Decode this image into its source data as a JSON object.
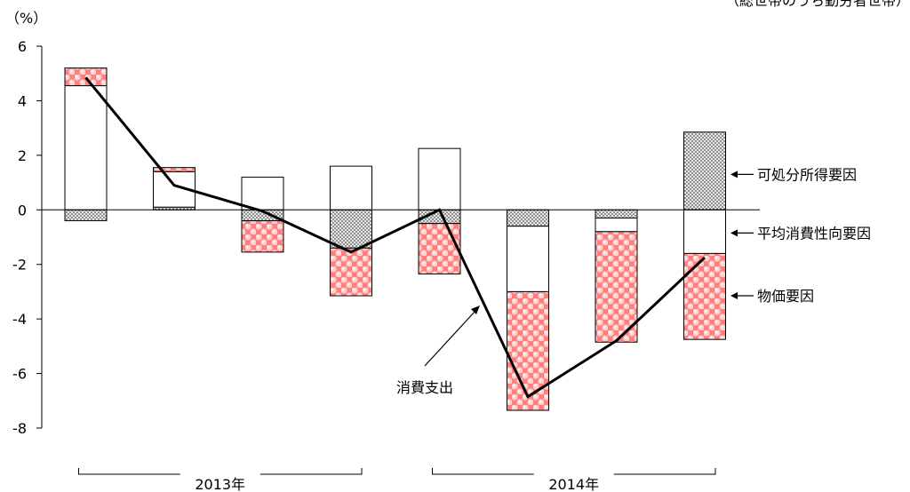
{
  "header_text": "（総世帯のうち勤労者世帯）",
  "chart_data": {
    "type": "bar",
    "stacked": true,
    "y_unit_label": "（%）",
    "ylim": [
      -8,
      6
    ],
    "y_ticks": [
      6,
      4,
      2,
      0,
      -2,
      -4,
      -6,
      -8
    ],
    "y_tick_labels": [
      "6",
      "4",
      "2",
      "0",
      "-2",
      "-4",
      "-6",
      "-8"
    ],
    "grid": false,
    "series": [
      {
        "name": "可処分所得要因",
        "color": "#9a9a9a",
        "pattern": "dots-gray",
        "values": [
          -0.4,
          0.1,
          -0.4,
          -1.4,
          -0.5,
          -0.6,
          -0.3,
          2.85
        ]
      },
      {
        "name": "平均消費性向要因",
        "color": "#ffffff",
        "pattern": "white",
        "values": [
          4.55,
          1.3,
          1.2,
          1.6,
          2.25,
          -2.4,
          -0.5,
          -1.6
        ]
      },
      {
        "name": "物価要因",
        "color": "#ff8080",
        "pattern": "circles-pink",
        "values": [
          0.65,
          0.15,
          -1.15,
          -1.75,
          -1.85,
          -4.35,
          -4.05,
          -3.15
        ]
      }
    ],
    "line": {
      "name": "消費支出",
      "values": [
        4.85,
        0.9,
        -0.05,
        -1.55,
        0.0,
        -6.85,
        -4.8,
        -1.75
      ]
    },
    "year_groups": [
      {
        "label": "2013年",
        "span": [
          0,
          3
        ]
      },
      {
        "label": "2014年",
        "span": [
          4,
          7
        ]
      }
    ],
    "legend_placement": "right"
  }
}
